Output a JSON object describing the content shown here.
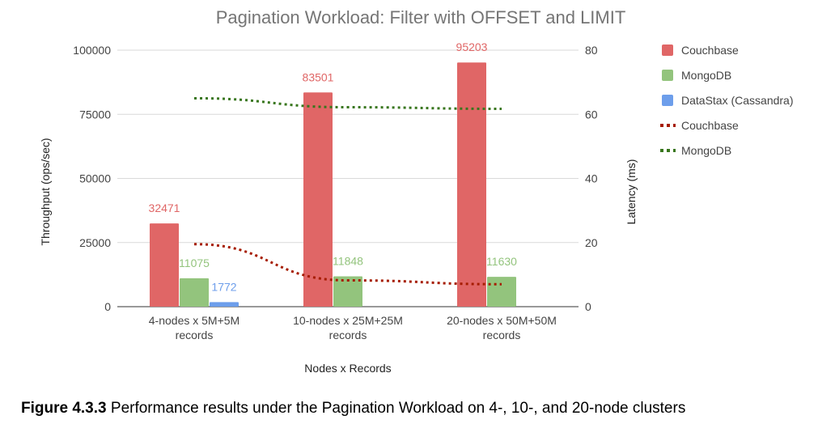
{
  "caption": {
    "figure_label": "Figure 4.3.3",
    "text": "Performance results under the Pagination Workload on 4-, 10-, and 20-node clusters"
  },
  "chart_data": {
    "type": "bar",
    "title": "Pagination Workload: Filter with OFFSET and LIMIT",
    "xlabel": "Nodes x Records",
    "ylabel": "Throughput (ops/sec)",
    "y2label": "Latency (ms)",
    "categories": [
      [
        "4-nodes x 5M+5M",
        "records"
      ],
      [
        "10-nodes x 25M+25M",
        "records"
      ],
      [
        "20-nodes x 50M+50M",
        "records"
      ]
    ],
    "ylim": [
      0,
      100000
    ],
    "yticks": [
      "0",
      "25000",
      "50000",
      "75000",
      "100000"
    ],
    "ytick_values": [
      0,
      25000,
      50000,
      75000,
      100000
    ],
    "y2lim": [
      0,
      80
    ],
    "y2ticks": [
      "0",
      "20",
      "40",
      "60",
      "80"
    ],
    "y2tick_values": [
      0,
      20,
      40,
      60,
      80
    ],
    "grid": true,
    "legend_position": "right",
    "series": [
      {
        "name": "Couchbase",
        "kind": "bar",
        "color": "#e06666",
        "values": [
          32471,
          83501,
          95203
        ],
        "labels": [
          "32471",
          "83501",
          "95203"
        ]
      },
      {
        "name": "MongoDB",
        "kind": "bar",
        "color": "#93c47d",
        "values": [
          11075,
          11848,
          11630
        ],
        "labels": [
          "11075",
          "11848",
          "11630"
        ]
      },
      {
        "name": "DataStax (Cassandra)",
        "kind": "bar",
        "color": "#6d9eeb",
        "values": [
          1772,
          null,
          null
        ],
        "labels": [
          "1772",
          "",
          ""
        ]
      },
      {
        "name": "Couchbase",
        "kind": "line",
        "axis": "right",
        "style": "dotted",
        "color": "#a61c00",
        "values": [
          19.5,
          8.2,
          7.0
        ]
      },
      {
        "name": "MongoDB",
        "kind": "line",
        "axis": "right",
        "style": "dotted",
        "color": "#38761d",
        "values": [
          65,
          62.2,
          61.7
        ]
      }
    ]
  }
}
